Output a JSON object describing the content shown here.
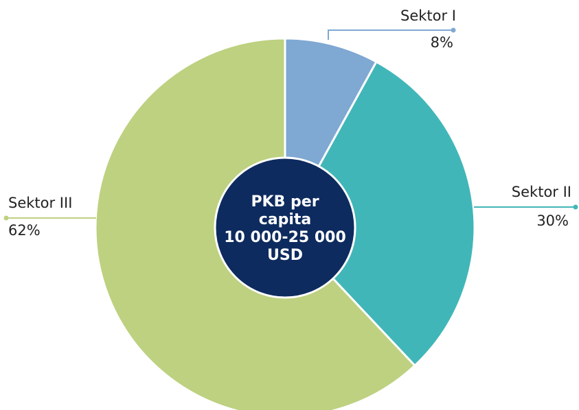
{
  "chart_data": {
    "type": "pie",
    "categories": [
      "Sektor I",
      "Sektor II",
      "Sektor III"
    ],
    "values": [
      8,
      30,
      62
    ],
    "value_labels": [
      "8%",
      "30%",
      "62%"
    ],
    "colors": [
      "#7fa8d3",
      "#41b6b8",
      "#bdd180"
    ],
    "center_text": [
      "PKB per",
      "capita",
      "10 000-25 000",
      "USD"
    ],
    "center_color": "#0d2b5e"
  }
}
